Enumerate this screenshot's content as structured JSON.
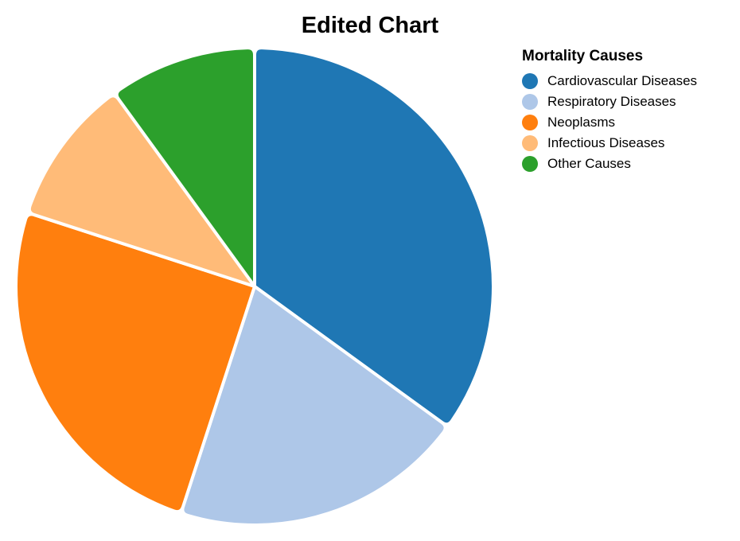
{
  "chart_data": {
    "type": "pie",
    "title": "Edited Chart",
    "legend_title": "Mortality Causes",
    "legend_position": "top-right",
    "categories": [
      "Cardiovascular Diseases",
      "Respiratory Diseases",
      "Neoplasms",
      "Infectious Diseases",
      "Other Causes"
    ],
    "values": [
      35,
      20,
      25,
      10,
      10
    ],
    "colors": [
      "#1f77b4",
      "#aec7e8",
      "#ff7f0e",
      "#ffbb78",
      "#2ca02c"
    ]
  }
}
